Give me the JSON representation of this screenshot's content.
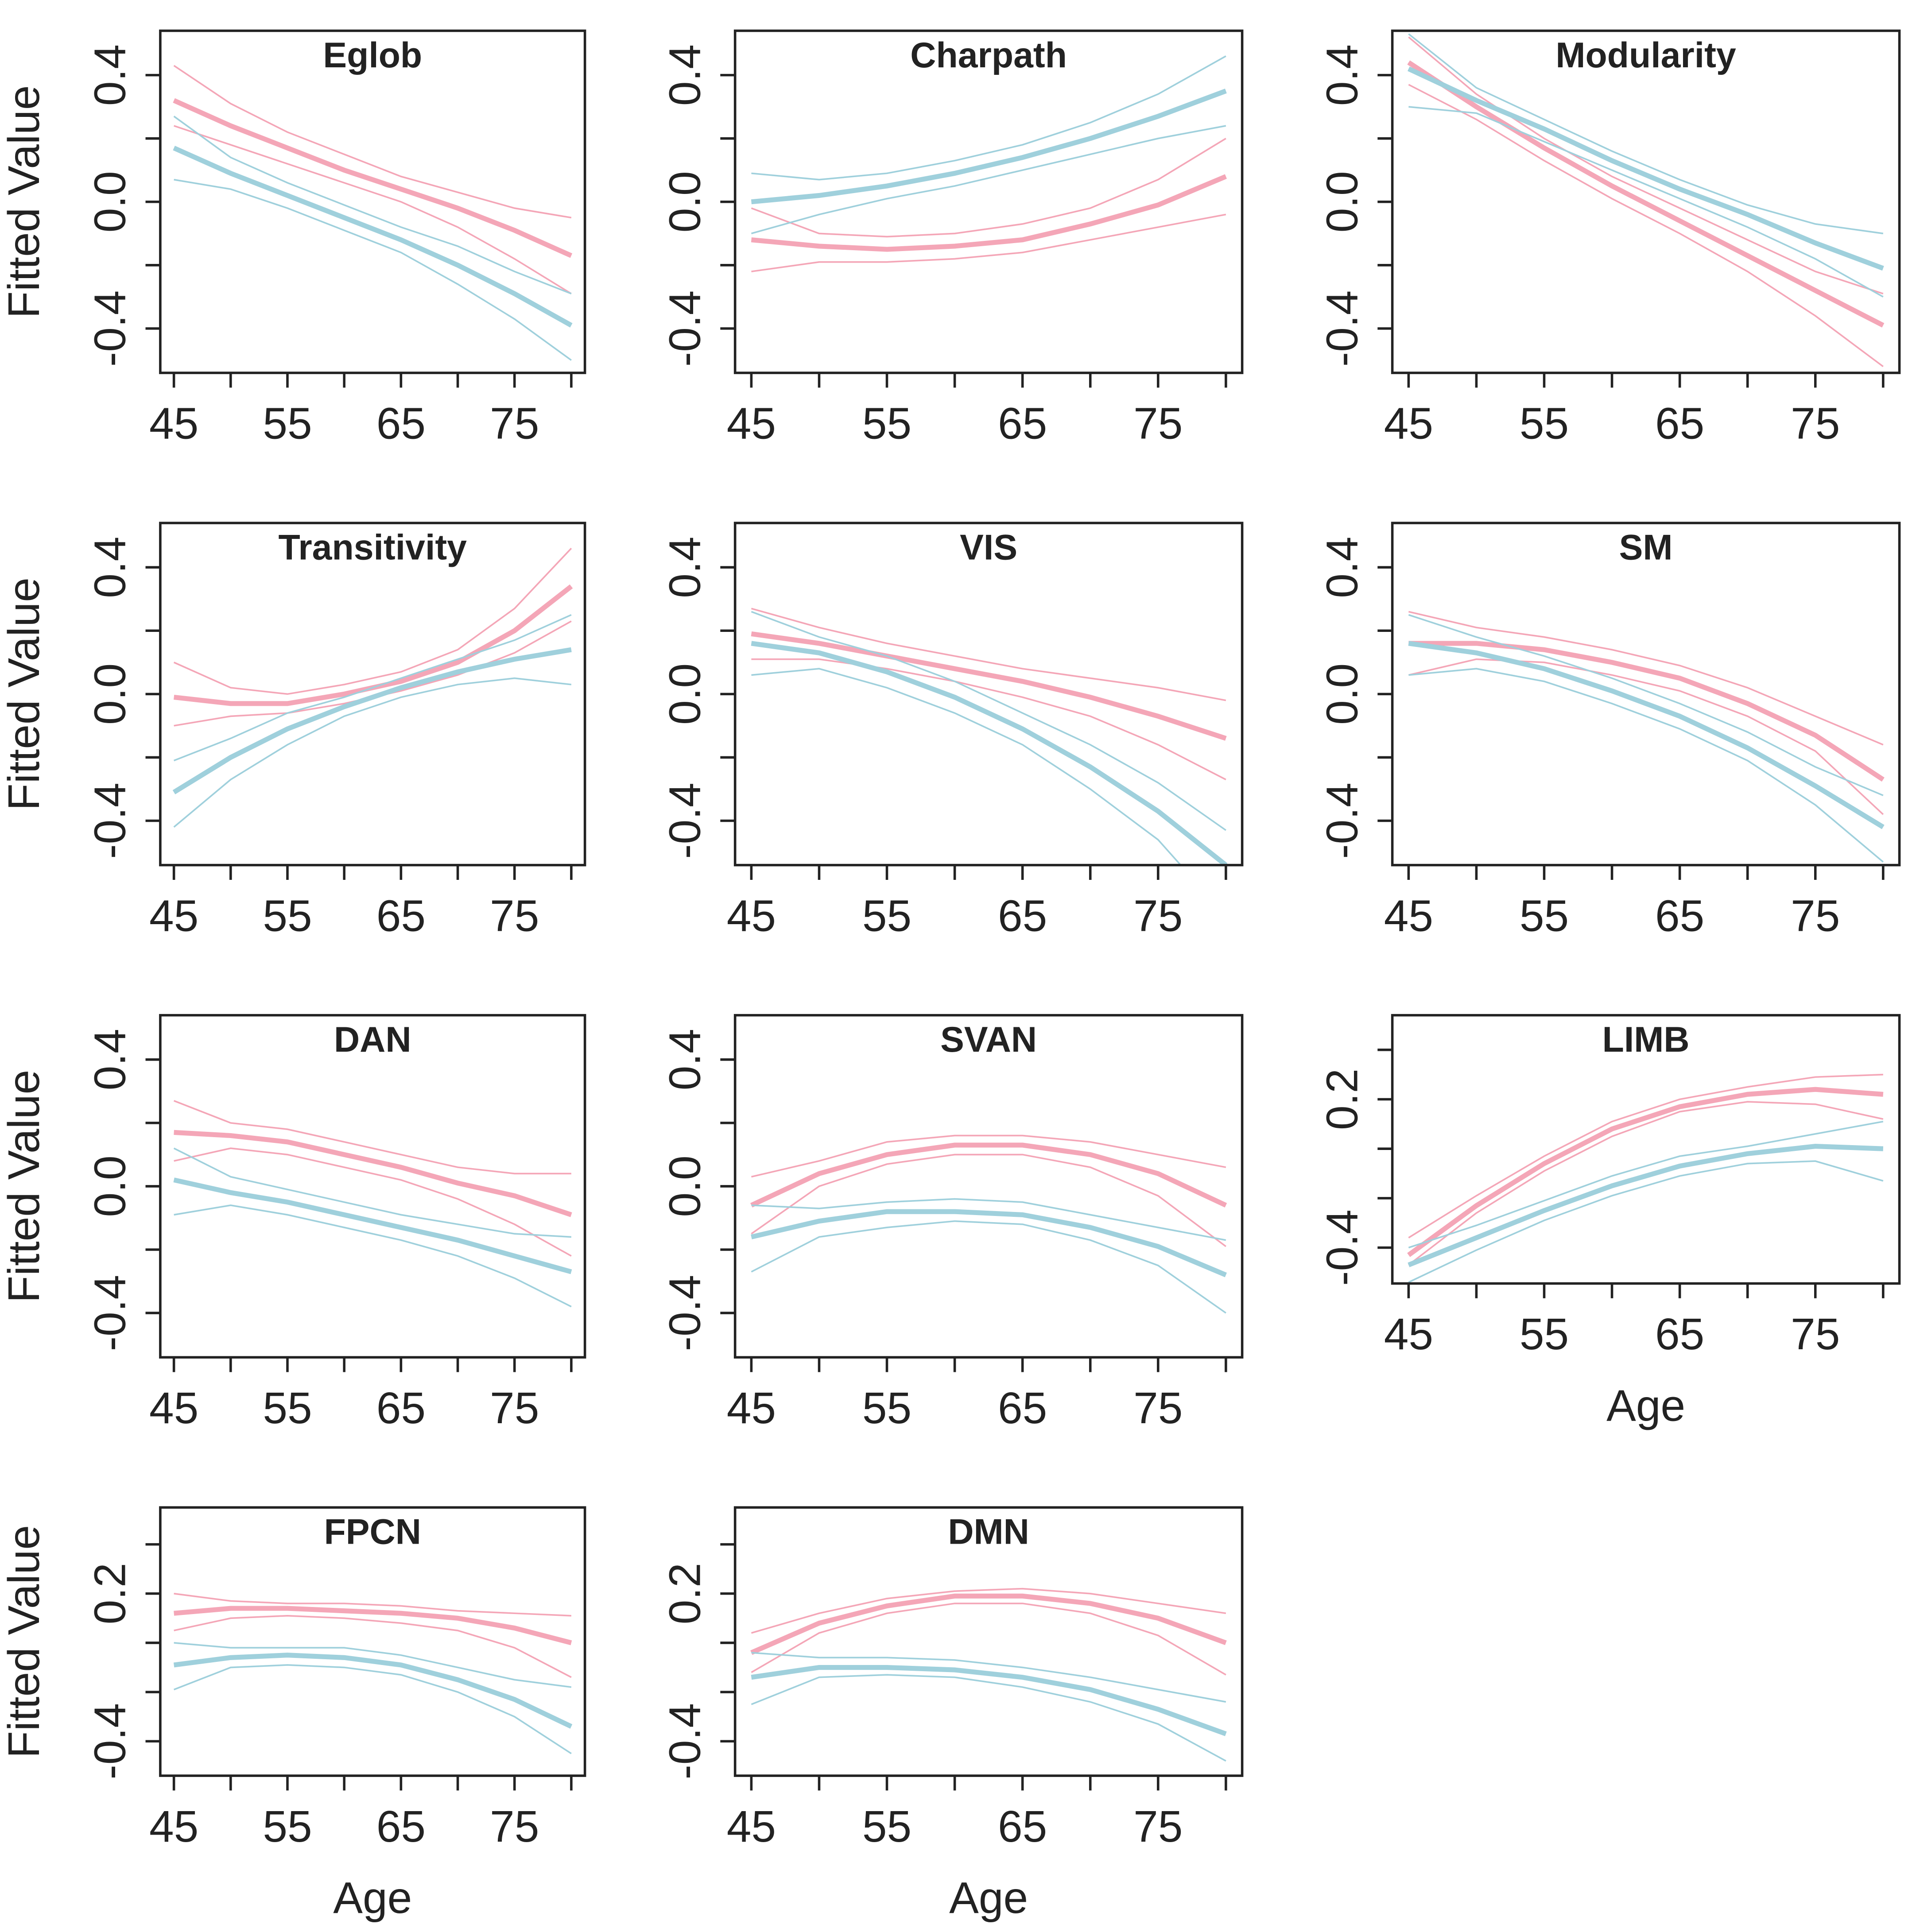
{
  "chart_data": [
    {
      "type": "line",
      "title": "Eglob",
      "ylabel": "Fitted Value",
      "x": [
        45,
        50,
        55,
        60,
        65,
        70,
        75,
        80
      ],
      "xlim": [
        43.8,
        81.2
      ],
      "xticks": [
        45,
        55,
        65,
        75
      ],
      "xminor": [
        50,
        60,
        70,
        80
      ],
      "ylim": [
        -0.54,
        0.54
      ],
      "yticks": [
        -0.4,
        {
          "value": 0,
          "label": "0.0"
        },
        0.4
      ],
      "yminor": [
        -0.2,
        0.2
      ],
      "series": [
        {
          "color": "#f4a6b7",
          "values": [
            0.32,
            0.24,
            0.17,
            0.1,
            0.04,
            -0.02,
            -0.09,
            -0.17
          ],
          "lower": [
            0.24,
            0.18,
            0.12,
            0.06,
            0.0,
            -0.08,
            -0.18,
            -0.29
          ],
          "upper": [
            0.43,
            0.31,
            0.22,
            0.15,
            0.08,
            0.03,
            -0.02,
            -0.05
          ]
        },
        {
          "color": "#9fd0dc",
          "values": [
            0.17,
            0.09,
            0.02,
            -0.05,
            -0.12,
            -0.2,
            -0.29,
            -0.39
          ],
          "lower": [
            0.07,
            0.04,
            -0.02,
            -0.09,
            -0.16,
            -0.26,
            -0.37,
            -0.5
          ],
          "upper": [
            0.27,
            0.14,
            0.06,
            -0.01,
            -0.08,
            -0.14,
            -0.22,
            -0.29
          ]
        }
      ]
    },
    {
      "type": "line",
      "title": "Charpath",
      "x": [
        45,
        50,
        55,
        60,
        65,
        70,
        75,
        80
      ],
      "xlim": [
        43.8,
        81.2
      ],
      "xticks": [
        45,
        55,
        65,
        75
      ],
      "xminor": [
        50,
        60,
        70,
        80
      ],
      "ylim": [
        -0.54,
        0.54
      ],
      "yticks": [
        -0.4,
        {
          "value": 0,
          "label": "0.0"
        },
        0.4
      ],
      "yminor": [
        -0.2,
        0.2
      ],
      "series": [
        {
          "color": "#f4a6b7",
          "values": [
            -0.12,
            -0.14,
            -0.15,
            -0.14,
            -0.12,
            -0.07,
            -0.01,
            0.08
          ],
          "lower": [
            -0.22,
            -0.19,
            -0.19,
            -0.18,
            -0.16,
            -0.12,
            -0.08,
            -0.04
          ],
          "upper": [
            -0.02,
            -0.1,
            -0.11,
            -0.1,
            -0.07,
            -0.02,
            0.07,
            0.2
          ]
        },
        {
          "color": "#9fd0dc",
          "values": [
            0.0,
            0.02,
            0.05,
            0.09,
            0.14,
            0.2,
            0.27,
            0.35
          ],
          "lower": [
            -0.1,
            -0.04,
            0.01,
            0.05,
            0.1,
            0.15,
            0.2,
            0.24
          ],
          "upper": [
            0.09,
            0.07,
            0.09,
            0.13,
            0.18,
            0.25,
            0.34,
            0.46
          ]
        }
      ]
    },
    {
      "type": "line",
      "title": "Modularity",
      "x": [
        45,
        50,
        55,
        60,
        65,
        70,
        75,
        80
      ],
      "xlim": [
        43.8,
        81.2
      ],
      "xticks": [
        45,
        55,
        65,
        75
      ],
      "xminor": [
        50,
        60,
        70,
        80
      ],
      "ylim": [
        -0.54,
        0.54
      ],
      "yticks": [
        -0.4,
        {
          "value": 0,
          "label": "0.0"
        },
        0.4
      ],
      "yminor": [
        -0.2,
        0.2
      ],
      "series": [
        {
          "color": "#f4a6b7",
          "values": [
            0.44,
            0.3,
            0.17,
            0.05,
            -0.06,
            -0.17,
            -0.28,
            -0.39
          ],
          "lower": [
            0.37,
            0.26,
            0.13,
            0.01,
            -0.1,
            -0.22,
            -0.36,
            -0.52
          ],
          "upper": [
            0.52,
            0.34,
            0.2,
            0.08,
            -0.02,
            -0.12,
            -0.22,
            -0.29
          ]
        },
        {
          "color": "#9fd0dc",
          "values": [
            0.42,
            0.32,
            0.23,
            0.13,
            0.04,
            -0.04,
            -0.13,
            -0.21
          ],
          "lower": [
            0.3,
            0.28,
            0.19,
            0.1,
            0.01,
            -0.08,
            -0.18,
            -0.3
          ],
          "upper": [
            0.53,
            0.36,
            0.26,
            0.16,
            0.07,
            -0.01,
            -0.07,
            -0.1
          ]
        }
      ]
    },
    {
      "type": "line",
      "title": "Transitivity",
      "ylabel": "Fitted Value",
      "x": [
        45,
        50,
        55,
        60,
        65,
        70,
        75,
        80
      ],
      "xlim": [
        43.8,
        81.2
      ],
      "xticks": [
        45,
        55,
        65,
        75
      ],
      "xminor": [
        50,
        60,
        70,
        80
      ],
      "ylim": [
        -0.54,
        0.54
      ],
      "yticks": [
        -0.4,
        {
          "value": 0,
          "label": "0.0"
        },
        0.4
      ],
      "yminor": [
        -0.2,
        0.2
      ],
      "series": [
        {
          "color": "#f4a6b7",
          "values": [
            -0.01,
            -0.03,
            -0.03,
            0.0,
            0.04,
            0.1,
            0.2,
            0.34
          ],
          "lower": [
            -0.1,
            -0.07,
            -0.06,
            -0.03,
            0.01,
            0.06,
            0.13,
            0.23
          ],
          "upper": [
            0.1,
            0.02,
            0.0,
            0.03,
            0.07,
            0.14,
            0.27,
            0.46
          ]
        },
        {
          "color": "#9fd0dc",
          "values": [
            -0.31,
            -0.2,
            -0.11,
            -0.04,
            0.02,
            0.07,
            0.11,
            0.14
          ],
          "lower": [
            -0.42,
            -0.27,
            -0.16,
            -0.07,
            -0.01,
            0.03,
            0.05,
            0.03
          ],
          "upper": [
            -0.21,
            -0.14,
            -0.06,
            -0.01,
            0.05,
            0.11,
            0.17,
            0.25
          ]
        }
      ]
    },
    {
      "type": "line",
      "title": "VIS",
      "x": [
        45,
        50,
        55,
        60,
        65,
        70,
        75,
        80
      ],
      "xlim": [
        43.8,
        81.2
      ],
      "xticks": [
        45,
        55,
        65,
        75
      ],
      "xminor": [
        50,
        60,
        70,
        80
      ],
      "ylim": [
        -0.54,
        0.54
      ],
      "yticks": [
        -0.4,
        {
          "value": 0,
          "label": "0.0"
        },
        0.4
      ],
      "yminor": [
        -0.2,
        0.2
      ],
      "series": [
        {
          "color": "#f4a6b7",
          "values": [
            0.19,
            0.16,
            0.12,
            0.08,
            0.04,
            -0.01,
            -0.07,
            -0.14
          ],
          "lower": [
            0.11,
            0.11,
            0.08,
            0.04,
            -0.01,
            -0.07,
            -0.16,
            -0.27
          ],
          "upper": [
            0.27,
            0.21,
            0.16,
            0.12,
            0.08,
            0.05,
            0.02,
            -0.02
          ]
        },
        {
          "color": "#9fd0dc",
          "values": [
            0.16,
            0.13,
            0.07,
            -0.01,
            -0.11,
            -0.23,
            -0.37,
            -0.54
          ],
          "lower": [
            0.06,
            0.08,
            0.02,
            -0.06,
            -0.16,
            -0.3,
            -0.46,
            -0.7
          ],
          "upper": [
            0.26,
            0.18,
            0.12,
            0.04,
            -0.06,
            -0.16,
            -0.28,
            -0.43
          ]
        }
      ]
    },
    {
      "type": "line",
      "title": "SM",
      "x": [
        45,
        50,
        55,
        60,
        65,
        70,
        75,
        80
      ],
      "xlim": [
        43.8,
        81.2
      ],
      "xticks": [
        45,
        55,
        65,
        75
      ],
      "xminor": [
        50,
        60,
        70,
        80
      ],
      "ylim": [
        -0.54,
        0.54
      ],
      "yticks": [
        -0.4,
        {
          "value": 0,
          "label": "0.0"
        },
        0.4
      ],
      "yminor": [
        -0.2,
        0.2
      ],
      "series": [
        {
          "color": "#f4a6b7",
          "values": [
            0.16,
            0.16,
            0.14,
            0.1,
            0.05,
            -0.03,
            -0.13,
            -0.27
          ],
          "lower": [
            0.06,
            0.11,
            0.1,
            0.06,
            0.01,
            -0.07,
            -0.18,
            -0.38
          ],
          "upper": [
            0.26,
            0.21,
            0.18,
            0.14,
            0.09,
            0.02,
            -0.07,
            -0.16
          ]
        },
        {
          "color": "#9fd0dc",
          "values": [
            0.16,
            0.13,
            0.08,
            0.01,
            -0.07,
            -0.17,
            -0.29,
            -0.42
          ],
          "lower": [
            0.06,
            0.08,
            0.04,
            -0.03,
            -0.11,
            -0.21,
            -0.35,
            -0.53
          ],
          "upper": [
            0.25,
            0.18,
            0.12,
            0.05,
            -0.03,
            -0.12,
            -0.23,
            -0.32
          ]
        }
      ]
    },
    {
      "type": "line",
      "title": "DAN",
      "ylabel": "Fitted Value",
      "x": [
        45,
        50,
        55,
        60,
        65,
        70,
        75,
        80
      ],
      "xlim": [
        43.8,
        81.2
      ],
      "xticks": [
        45,
        55,
        65,
        75
      ],
      "xminor": [
        50,
        60,
        70,
        80
      ],
      "ylim": [
        -0.54,
        0.54
      ],
      "yticks": [
        -0.4,
        {
          "value": 0,
          "label": "0.0"
        },
        0.4
      ],
      "yminor": [
        -0.2,
        0.2
      ],
      "series": [
        {
          "color": "#f4a6b7",
          "values": [
            0.17,
            0.16,
            0.14,
            0.1,
            0.06,
            0.01,
            -0.03,
            -0.09
          ],
          "lower": [
            0.08,
            0.12,
            0.1,
            0.06,
            0.02,
            -0.04,
            -0.12,
            -0.22
          ],
          "upper": [
            0.27,
            0.2,
            0.18,
            0.14,
            0.1,
            0.06,
            0.04,
            0.04
          ]
        },
        {
          "color": "#9fd0dc",
          "values": [
            0.02,
            -0.02,
            -0.05,
            -0.09,
            -0.13,
            -0.17,
            -0.22,
            -0.27
          ],
          "lower": [
            -0.09,
            -0.06,
            -0.09,
            -0.13,
            -0.17,
            -0.22,
            -0.29,
            -0.38
          ],
          "upper": [
            0.12,
            0.03,
            -0.01,
            -0.05,
            -0.09,
            -0.12,
            -0.15,
            -0.16
          ]
        }
      ]
    },
    {
      "type": "line",
      "title": "SVAN",
      "x": [
        45,
        50,
        55,
        60,
        65,
        70,
        75,
        80
      ],
      "xlim": [
        43.8,
        81.2
      ],
      "xticks": [
        45,
        55,
        65,
        75
      ],
      "xminor": [
        50,
        60,
        70,
        80
      ],
      "ylim": [
        -0.54,
        0.54
      ],
      "yticks": [
        -0.4,
        {
          "value": 0,
          "label": "0.0"
        },
        0.4
      ],
      "yminor": [
        -0.2,
        0.2
      ],
      "series": [
        {
          "color": "#f4a6b7",
          "values": [
            -0.06,
            0.04,
            0.1,
            0.13,
            0.13,
            0.1,
            0.04,
            -0.06
          ],
          "lower": [
            -0.15,
            0.0,
            0.07,
            0.1,
            0.1,
            0.06,
            -0.03,
            -0.19
          ],
          "upper": [
            0.03,
            0.08,
            0.14,
            0.16,
            0.16,
            0.14,
            0.1,
            0.06
          ]
        },
        {
          "color": "#9fd0dc",
          "values": [
            -0.16,
            -0.11,
            -0.08,
            -0.08,
            -0.09,
            -0.13,
            -0.19,
            -0.28
          ],
          "lower": [
            -0.27,
            -0.16,
            -0.13,
            -0.11,
            -0.12,
            -0.17,
            -0.25,
            -0.4
          ],
          "upper": [
            -0.06,
            -0.07,
            -0.05,
            -0.04,
            -0.05,
            -0.09,
            -0.13,
            -0.17
          ]
        }
      ]
    },
    {
      "type": "line",
      "title": "LIMB",
      "xlabel": "Age",
      "x": [
        45,
        50,
        55,
        60,
        65,
        70,
        75,
        80
      ],
      "xlim": [
        43.8,
        81.2
      ],
      "xticks": [
        45,
        55,
        65,
        75
      ],
      "xminor": [
        50,
        60,
        70,
        80
      ],
      "ylim": [
        -0.545,
        0.54
      ],
      "yticks": [
        -0.4,
        0.2
      ],
      "yminor": [
        -0.2,
        0,
        0.4
      ],
      "series": [
        {
          "color": "#f4a6b7",
          "values": [
            -0.43,
            -0.23,
            -0.06,
            0.08,
            0.17,
            0.22,
            0.24,
            0.22
          ],
          "lower": [
            -0.47,
            -0.26,
            -0.09,
            0.05,
            0.15,
            0.19,
            0.18,
            0.12
          ],
          "upper": [
            -0.36,
            -0.19,
            -0.03,
            0.11,
            0.2,
            0.25,
            0.29,
            0.3
          ]
        },
        {
          "color": "#9fd0dc",
          "values": [
            -0.47,
            -0.36,
            -0.25,
            -0.15,
            -0.07,
            -0.02,
            0.01,
            0.0
          ],
          "lower": [
            -0.54,
            -0.41,
            -0.29,
            -0.19,
            -0.11,
            -0.06,
            -0.05,
            -0.13
          ],
          "upper": [
            -0.4,
            -0.31,
            -0.21,
            -0.11,
            -0.03,
            0.01,
            0.06,
            0.11
          ]
        }
      ]
    },
    {
      "type": "line",
      "title": "FPCN",
      "ylabel": "Fitted Value",
      "xlabel": "Age",
      "x": [
        45,
        50,
        55,
        60,
        65,
        70,
        75,
        80
      ],
      "xlim": [
        43.8,
        81.2
      ],
      "xticks": [
        45,
        55,
        65,
        75
      ],
      "xminor": [
        50,
        60,
        70,
        80
      ],
      "ylim": [
        -0.54,
        0.55
      ],
      "yticks": [
        -0.4,
        0.2
      ],
      "yminor": [
        -0.2,
        0,
        0.4
      ],
      "series": [
        {
          "color": "#f4a6b7",
          "values": [
            0.12,
            0.14,
            0.14,
            0.13,
            0.12,
            0.1,
            0.06,
            0.0
          ],
          "lower": [
            0.05,
            0.1,
            0.11,
            0.1,
            0.08,
            0.05,
            -0.02,
            -0.14
          ],
          "upper": [
            0.2,
            0.17,
            0.16,
            0.16,
            0.15,
            0.13,
            0.12,
            0.11
          ]
        },
        {
          "color": "#9fd0dc",
          "values": [
            -0.09,
            -0.06,
            -0.05,
            -0.06,
            -0.09,
            -0.15,
            -0.23,
            -0.34
          ],
          "lower": [
            -0.19,
            -0.1,
            -0.09,
            -0.1,
            -0.13,
            -0.2,
            -0.3,
            -0.45
          ],
          "upper": [
            0.0,
            -0.02,
            -0.02,
            -0.02,
            -0.05,
            -0.1,
            -0.15,
            -0.18
          ]
        }
      ]
    },
    {
      "type": "line",
      "title": "DMN",
      "xlabel": "Age",
      "x": [
        45,
        50,
        55,
        60,
        65,
        70,
        75,
        80
      ],
      "xlim": [
        43.8,
        81.2
      ],
      "xticks": [
        45,
        55,
        65,
        75
      ],
      "xminor": [
        50,
        60,
        70,
        80
      ],
      "ylim": [
        -0.54,
        0.55
      ],
      "yticks": [
        -0.4,
        0.2
      ],
      "yminor": [
        -0.2,
        0,
        0.4
      ],
      "series": [
        {
          "color": "#f4a6b7",
          "values": [
            -0.04,
            0.08,
            0.15,
            0.19,
            0.19,
            0.16,
            0.1,
            0.0
          ],
          "lower": [
            -0.12,
            0.04,
            0.12,
            0.16,
            0.16,
            0.12,
            0.03,
            -0.13
          ],
          "upper": [
            0.04,
            0.12,
            0.18,
            0.21,
            0.22,
            0.2,
            0.16,
            0.12
          ]
        },
        {
          "color": "#9fd0dc",
          "values": [
            -0.14,
            -0.1,
            -0.1,
            -0.11,
            -0.14,
            -0.19,
            -0.27,
            -0.37
          ],
          "lower": [
            -0.25,
            -0.14,
            -0.13,
            -0.14,
            -0.18,
            -0.24,
            -0.33,
            -0.48
          ],
          "upper": [
            -0.04,
            -0.06,
            -0.06,
            -0.07,
            -0.1,
            -0.14,
            -0.19,
            -0.24
          ]
        }
      ]
    }
  ]
}
